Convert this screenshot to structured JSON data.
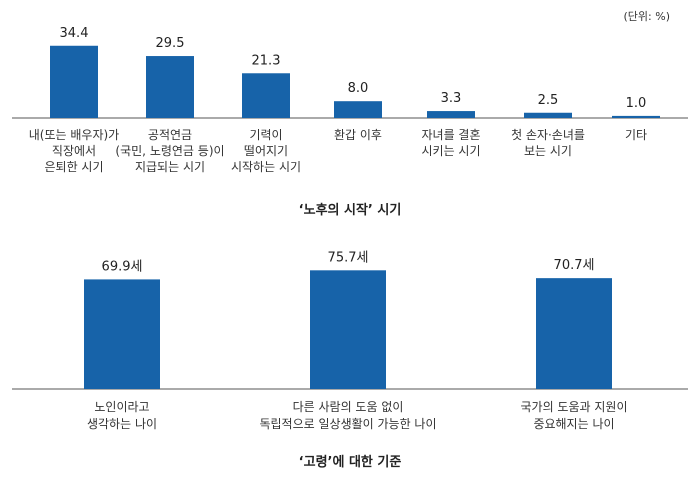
{
  "unit_label": "(단위: %)",
  "chart_data": [
    {
      "type": "bar",
      "title": "‘노후의 시작’ 시기",
      "categories": [
        [
          "내(또는 배우자)가",
          "직장에서",
          "은퇴한 시기"
        ],
        [
          "공적연금",
          "(국민, 노령연금 등)이",
          "지급되는 시기"
        ],
        [
          "기력이",
          "떨어지기",
          "시작하는 시기"
        ],
        [
          "환갑 이후"
        ],
        [
          "자녀를 결혼",
          "시키는 시기"
        ],
        [
          "첫 손자·손녀를",
          "보는 시기"
        ],
        [
          "기타"
        ]
      ],
      "values": [
        34.4,
        29.5,
        21.3,
        8.0,
        3.3,
        2.5,
        1.0
      ],
      "value_labels": [
        "34.4",
        "29.5",
        "21.3",
        "8.0",
        "3.3",
        "2.5",
        "1.0"
      ],
      "ylim": [
        0,
        40
      ],
      "color": "#1763a9",
      "grid": false
    },
    {
      "type": "bar",
      "title": "‘고령’에 대한 기준",
      "categories": [
        [
          "노인이라고",
          "생각하는 나이"
        ],
        [
          "다른 사람의 도움 없이",
          "독립적으로 일상생활이 가능한 나이"
        ],
        [
          "국가의 도움과 지원이",
          "중요해지는 나이"
        ]
      ],
      "values": [
        69.9,
        75.7,
        70.7
      ],
      "value_labels": [
        "69.9세",
        "75.7세",
        "70.7세"
      ],
      "ylim": [
        0,
        81
      ],
      "color": "#1763a9",
      "grid": false
    }
  ]
}
